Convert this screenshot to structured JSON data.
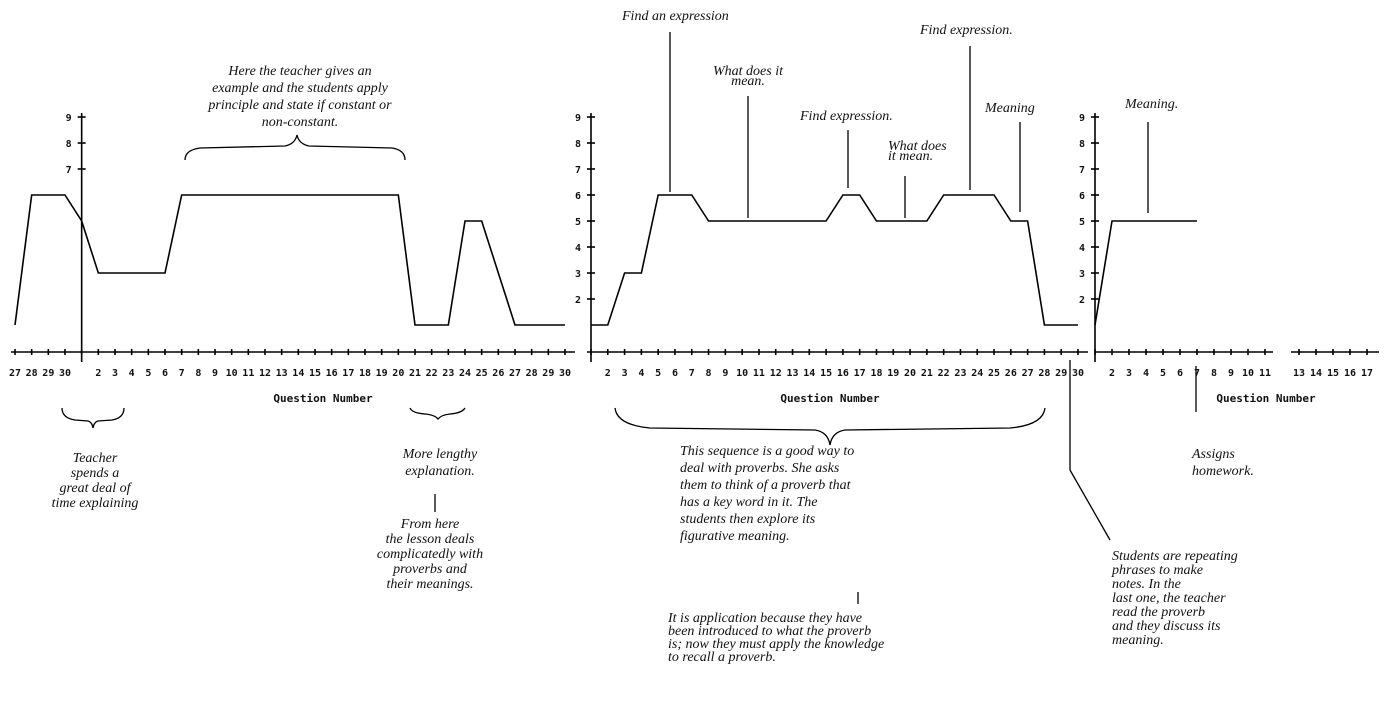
{
  "chart_data": [
    {
      "type": "line",
      "xlabel": "Question Number",
      "color": "#000000",
      "ylim": [
        0,
        9
      ],
      "yticks": [
        7,
        8,
        9
      ],
      "categories": [
        "27",
        "28",
        "29",
        "30",
        null,
        "2",
        "3",
        "4",
        "5",
        "6",
        "7",
        "8",
        "9",
        "10",
        "11",
        "12",
        "13",
        "14",
        "15",
        "16",
        "17",
        "18",
        "19",
        "20",
        "21",
        "22",
        "23",
        "24",
        "25",
        "26",
        "27",
        "28",
        "29",
        "30"
      ],
      "values": [
        1,
        6,
        6,
        6,
        5,
        3,
        3,
        3,
        3,
        3,
        6,
        6,
        6,
        6,
        6,
        6,
        6,
        6,
        6,
        6,
        6,
        6,
        6,
        6,
        1,
        1,
        1,
        5,
        5,
        3,
        1,
        1,
        1,
        1
      ]
    },
    {
      "type": "line",
      "xlabel": "Question Number",
      "color": "#000000",
      "ylim": [
        0,
        9
      ],
      "yticks": [
        2,
        3,
        4,
        5,
        6,
        7,
        8,
        9
      ],
      "categories": [
        null,
        "2",
        "3",
        "4",
        "5",
        "6",
        "7",
        "8",
        "9",
        "10",
        "11",
        "12",
        "13",
        "14",
        "15",
        "16",
        "17",
        "18",
        "19",
        "20",
        "21",
        "22",
        "23",
        "24",
        "25",
        "26",
        "27",
        "28",
        "29",
        "30"
      ],
      "values": [
        1,
        1,
        3,
        3,
        6,
        6,
        6,
        5,
        5,
        5,
        5,
        5,
        5,
        5,
        5,
        6,
        6,
        5,
        5,
        5,
        5,
        6,
        6,
        6,
        6,
        5,
        5,
        1,
        1,
        1
      ]
    },
    {
      "type": "line",
      "xlabel": "Question Number",
      "color": "#000000",
      "ylim": [
        0,
        9
      ],
      "yticks": [
        2,
        3,
        4,
        5,
        6,
        7,
        8,
        9
      ],
      "categories": [
        null,
        "2",
        "3",
        "4",
        "5",
        "6",
        "7",
        "8",
        "9",
        "10",
        "11",
        null,
        "13",
        "14",
        "15",
        "16",
        "17"
      ],
      "values": [
        1,
        5,
        5,
        5,
        5,
        5,
        5,
        null,
        null,
        null,
        null,
        null,
        null,
        null,
        null,
        null,
        null
      ]
    }
  ],
  "annotations": [
    {
      "lines": [
        "Here the teacher gives an",
        "example and the students apply",
        "principle and state if constant or",
        "non-constant."
      ]
    },
    {
      "lines": [
        "Find an expression"
      ]
    },
    {
      "lines": [
        "What does it",
        "mean."
      ]
    },
    {
      "lines": [
        "Find expression."
      ]
    },
    {
      "lines": [
        "What does",
        "it mean."
      ]
    },
    {
      "lines": [
        "Find expression."
      ]
    },
    {
      "lines": [
        "Meaning"
      ]
    },
    {
      "lines": [
        "Meaning."
      ]
    },
    {
      "lines": [
        "Teacher",
        "spends a",
        "great deal of",
        "time explaining"
      ]
    },
    {
      "lines": [
        "More lengthy",
        "explanation."
      ]
    },
    {
      "lines": [
        "From here",
        "the lesson deals",
        "complicatedly with",
        "proverbs and",
        "their meanings."
      ]
    },
    {
      "lines": [
        "This sequence is a good way to",
        "deal with proverbs. She asks",
        "them to think of a proverb that",
        "has a key word in it. The",
        "students then explore its",
        "figurative meaning."
      ]
    },
    {
      "lines": [
        "It is application because they have",
        "been introduced to what the proverb",
        "is; now they must apply the knowledge",
        "to recall a proverb."
      ]
    },
    {
      "lines": [
        "Students are repeating",
        "phrases to make",
        "notes. In the",
        "last one, the teacher",
        "read the proverb",
        "and they discuss its",
        "meaning."
      ]
    },
    {
      "lines": [
        "Assigns",
        "homework."
      ]
    }
  ]
}
